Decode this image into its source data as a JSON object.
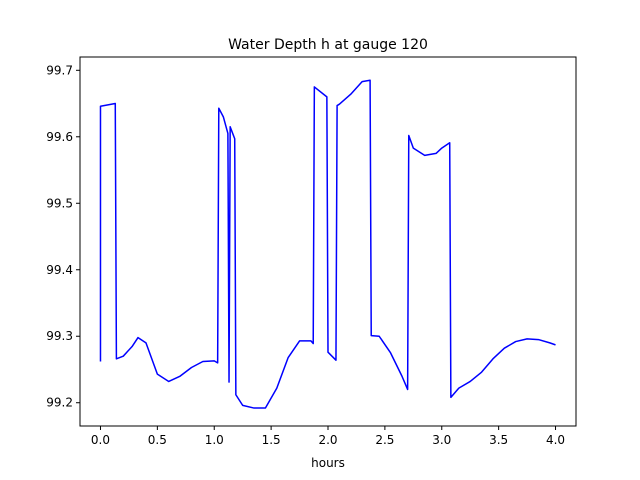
{
  "chart_data": {
    "type": "line",
    "title": "Water Depth h at gauge 120",
    "xlabel": "hours",
    "ylabel": "",
    "xlim": [
      -0.18,
      4.18
    ],
    "ylim": [
      99.165,
      99.72
    ],
    "xticks": [
      0.0,
      0.5,
      1.0,
      1.5,
      2.0,
      2.5,
      3.0,
      3.5,
      4.0
    ],
    "xtick_labels": [
      "0.0",
      "0.5",
      "1.0",
      "1.5",
      "2.0",
      "2.5",
      "3.0",
      "3.5",
      "4.0"
    ],
    "yticks": [
      99.2,
      99.3,
      99.4,
      99.5,
      99.6,
      99.7
    ],
    "ytick_labels": [
      "99.2",
      "99.3",
      "99.4",
      "99.5",
      "99.6",
      "99.7"
    ],
    "grid": false,
    "series": [
      {
        "color": "#0000ff",
        "x": [
          0.0,
          0.0,
          0.13,
          0.14,
          0.2,
          0.28,
          0.33,
          0.4,
          0.5,
          0.6,
          0.7,
          0.8,
          0.9,
          1.0,
          1.03,
          1.04,
          1.08,
          1.12,
          1.13,
          1.14,
          1.18,
          1.19,
          1.25,
          1.35,
          1.45,
          1.55,
          1.65,
          1.75,
          1.85,
          1.87,
          1.88,
          1.99,
          2.0,
          2.07,
          2.08,
          2.1,
          2.2,
          2.3,
          2.37,
          2.38,
          2.45,
          2.55,
          2.65,
          2.7,
          2.71,
          2.75,
          2.85,
          2.95,
          3.0,
          3.07,
          3.08,
          3.15,
          3.25,
          3.35,
          3.45,
          3.55,
          3.65,
          3.75,
          3.85,
          3.95,
          4.0
        ],
        "y": [
          99.262,
          99.646,
          99.65,
          99.266,
          99.27,
          99.285,
          99.298,
          99.29,
          99.243,
          99.232,
          99.24,
          99.253,
          99.262,
          99.263,
          99.26,
          99.643,
          99.63,
          99.605,
          99.231,
          99.615,
          99.597,
          99.212,
          99.196,
          99.192,
          99.192,
          99.222,
          99.268,
          99.293,
          99.293,
          99.289,
          99.675,
          99.66,
          99.276,
          99.264,
          99.647,
          99.649,
          99.664,
          99.683,
          99.685,
          99.301,
          99.3,
          99.275,
          99.24,
          99.22,
          99.602,
          99.583,
          99.572,
          99.575,
          99.583,
          99.591,
          99.208,
          99.222,
          99.232,
          99.246,
          99.266,
          99.282,
          99.292,
          99.296,
          99.295,
          99.29,
          99.287
        ]
      }
    ]
  }
}
